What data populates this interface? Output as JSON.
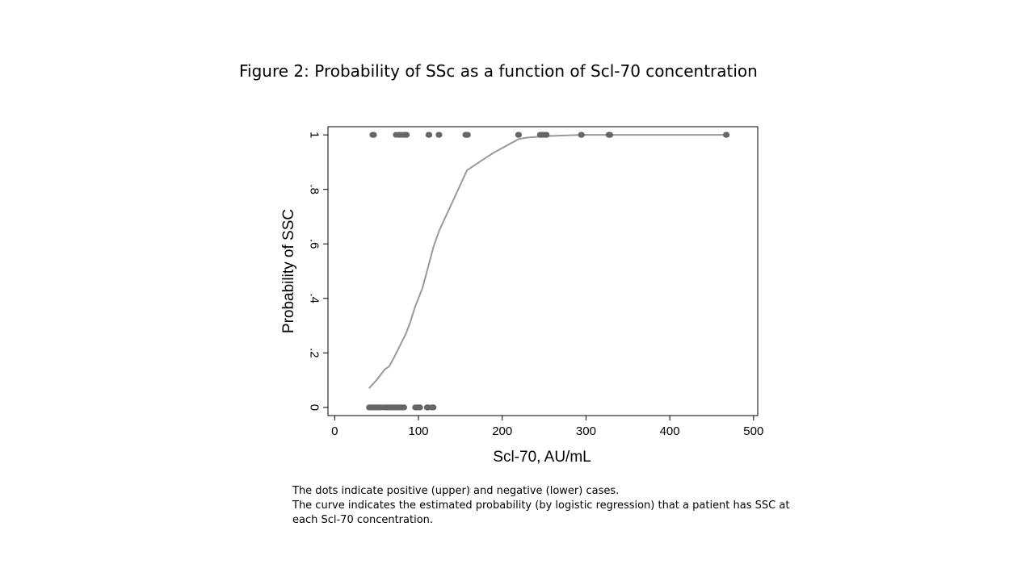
{
  "figure": {
    "title": "Figure 2:  Probability of SSc as a function of Scl-70 concentration",
    "notes": [
      "The dots indicate positive (upper) and negative (lower) cases.",
      "The curve indicates the estimated probability (by logistic regression) that a patient has SSC at",
      "each Scl-70 concentration."
    ]
  },
  "chart_data": {
    "type": "scatter",
    "title": "",
    "xlabel": "Scl-70, AU/mL",
    "ylabel": "Probability of SSC",
    "xlim": [
      -8,
      505
    ],
    "ylim": [
      -0.03,
      1.03
    ],
    "xticks": [
      0,
      100,
      200,
      300,
      400,
      500
    ],
    "xtick_labels": [
      "0",
      "100",
      "200",
      "300",
      "400",
      "500"
    ],
    "yticks": [
      0,
      0.2,
      0.4,
      0.6,
      0.8,
      1
    ],
    "ytick_labels": [
      "0",
      ".2",
      ".4",
      ".6",
      ".8",
      "1"
    ],
    "grid": false,
    "legend": "none",
    "colors": {
      "points": "#666666",
      "curve": "#999999"
    },
    "series": [
      {
        "kind": "points",
        "x": [
          45,
          46,
          47,
          73,
          76,
          78,
          80,
          83,
          84,
          86,
          112,
          113,
          124,
          125,
          156,
          157,
          158,
          159,
          219,
          220,
          245,
          246,
          248,
          250,
          252,
          253,
          294,
          295,
          327,
          328,
          329,
          467,
          468
        ],
        "y": [
          1,
          1,
          1,
          1,
          1,
          1,
          1,
          1,
          1,
          1,
          1,
          1,
          1,
          1,
          1,
          1,
          1,
          1,
          1,
          1,
          1,
          1,
          1,
          1,
          1,
          1,
          1,
          1,
          1,
          1,
          1,
          1,
          1
        ]
      },
      {
        "kind": "points",
        "x": [
          41,
          43,
          45,
          47,
          49,
          51,
          53,
          55,
          58,
          61,
          63,
          65,
          67,
          69,
          71,
          73,
          75,
          77,
          79,
          81,
          83,
          96,
          98,
          100,
          102,
          110,
          112,
          116,
          118
        ],
        "y": [
          0,
          0,
          0,
          0,
          0,
          0,
          0,
          0,
          0,
          0,
          0,
          0,
          0,
          0,
          0,
          0,
          0,
          0,
          0,
          0,
          0,
          0,
          0,
          0,
          0,
          0,
          0,
          0,
          0
        ]
      },
      {
        "kind": "curve",
        "x": [
          41,
          50,
          60,
          65,
          72,
          80,
          85,
          90,
          96,
          100,
          105,
          112,
          118,
          125,
          140,
          158,
          175,
          190,
          205,
          220,
          230,
          250,
          295,
          330,
          468
        ],
        "y": [
          0.07,
          0.1,
          0.14,
          0.15,
          0.19,
          0.24,
          0.27,
          0.31,
          0.37,
          0.4,
          0.44,
          0.52,
          0.59,
          0.65,
          0.75,
          0.87,
          0.905,
          0.935,
          0.96,
          0.985,
          0.99,
          0.995,
          1.0,
          1.0,
          1.0
        ]
      }
    ]
  }
}
